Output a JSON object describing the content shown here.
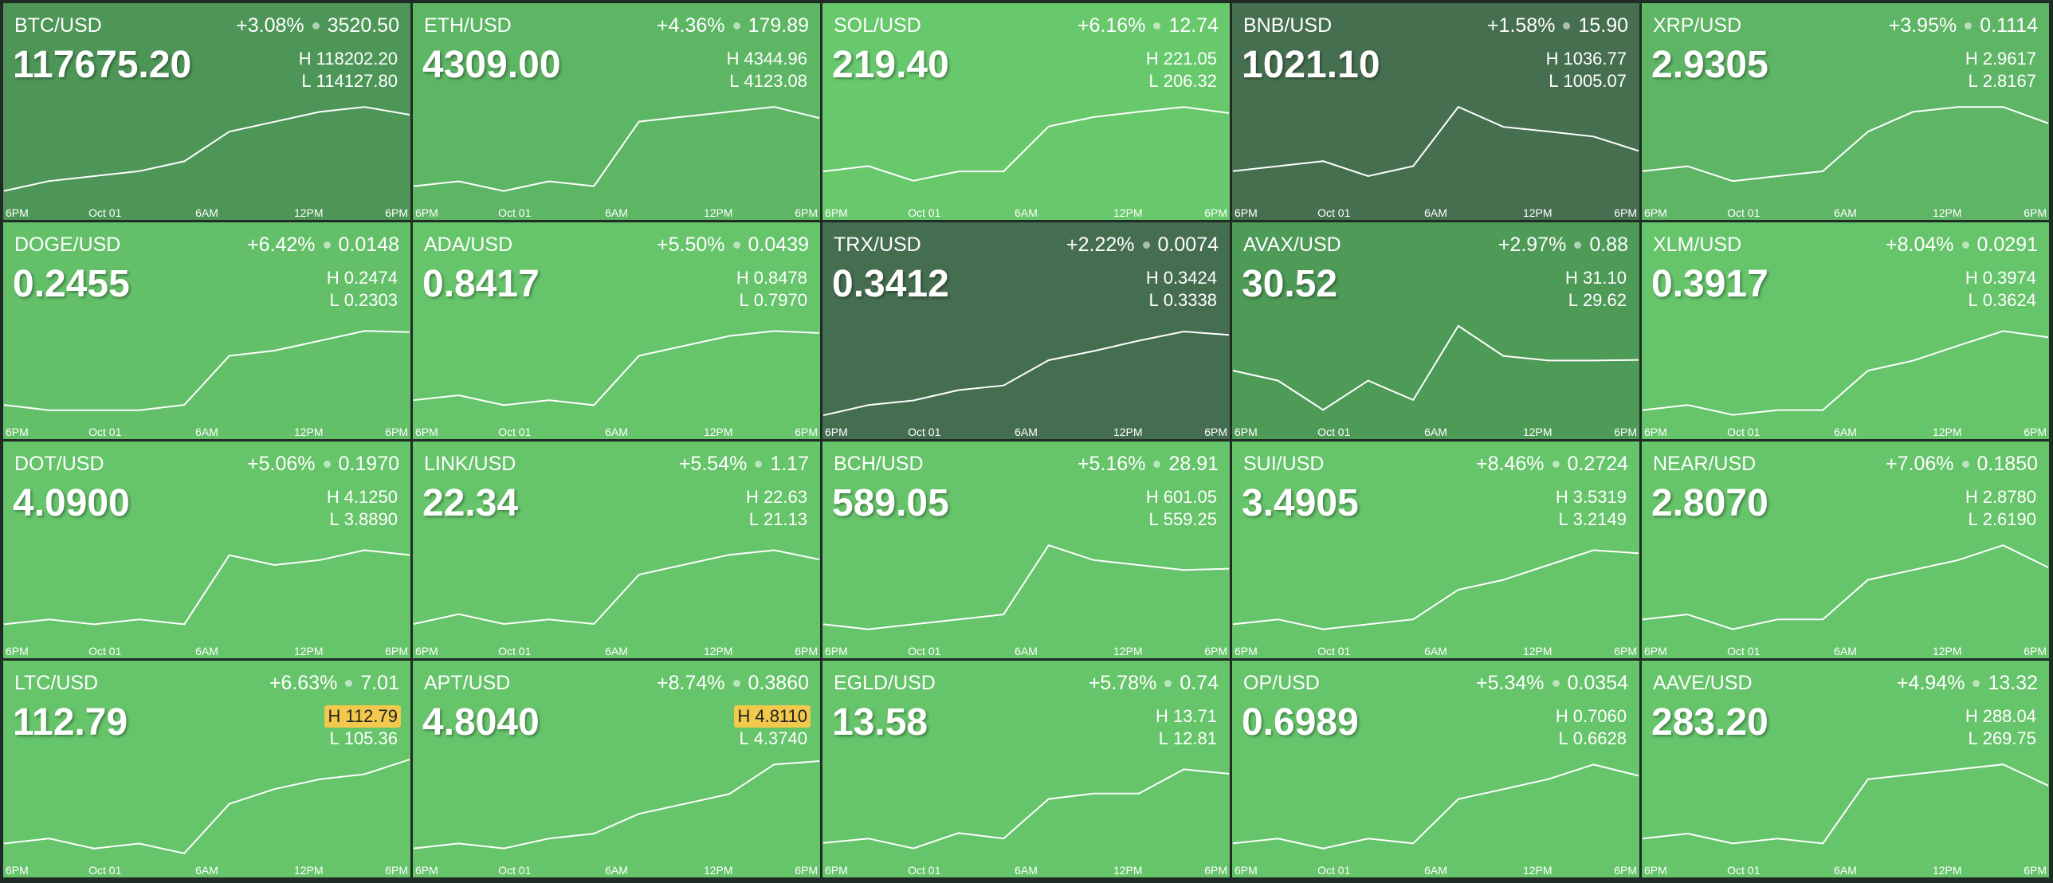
{
  "high_prefix": "H",
  "low_prefix": "L",
  "x_labels": [
    "6PM",
    "Oct 01",
    "6AM",
    "12PM",
    "6PM"
  ],
  "tiles": [
    {
      "pair": "BTC/USD",
      "change_pct": "+3.08%",
      "change": "3520.50",
      "price": "117675.20",
      "high": "118202.20",
      "low": "114127.80",
      "color": "#4d9657",
      "spark": [
        114535,
        114943,
        115146,
        115350,
        115758,
        116980,
        117387,
        117795,
        118000,
        117675
      ]
    },
    {
      "pair": "ETH/USD",
      "change_pct": "+4.36%",
      "change": "179.89",
      "price": "4309.00",
      "high": "4344.96",
      "low": "4123.08",
      "color": "#5db664",
      "spark": [
        4156,
        4167,
        4145,
        4167,
        4156,
        4301,
        4312,
        4323,
        4334,
        4309
      ]
    },
    {
      "pair": "SOL/USD",
      "change_pct": "+6.16%",
      "change": "12.74",
      "price": "219.40",
      "high": "221.05",
      "low": "206.32",
      "color": "#68c86c",
      "spark": [
        210.7,
        211.5,
        209.3,
        210.7,
        210.7,
        217.4,
        218.8,
        219.6,
        220.3,
        219.4
      ]
    },
    {
      "pair": "BNB/USD",
      "change_pct": "+1.58%",
      "change": "15.90",
      "price": "1021.10",
      "high": "1036.77",
      "low": "1005.07",
      "color": "#466f50",
      "spark": [
        1014.6,
        1016.2,
        1017.8,
        1013.0,
        1016.2,
        1035.2,
        1028.8,
        1027.3,
        1025.7,
        1021.1
      ]
    },
    {
      "pair": "XRP/USD",
      "change_pct": "+3.95%",
      "change": "0.1114",
      "price": "2.9305",
      "high": "2.9617",
      "low": "2.8167",
      "color": "#5fb566",
      "spark": [
        2.8602,
        2.8675,
        2.8457,
        2.853,
        2.8602,
        2.9182,
        2.9472,
        2.9545,
        2.9545,
        2.9305
      ]
    },
    {
      "pair": "DOGE/USD",
      "change_pct": "+6.42%",
      "change": "0.0148",
      "price": "0.2455",
      "high": "0.2474",
      "low": "0.2303",
      "color": "#63c068",
      "spark": [
        0.2329,
        0.232,
        0.232,
        0.232,
        0.2329,
        0.2414,
        0.2423,
        0.244,
        0.2457,
        0.2455
      ]
    },
    {
      "pair": "ADA/USD",
      "change_pct": "+5.50%",
      "change": "0.0439",
      "price": "0.8417",
      "high": "0.8478",
      "low": "0.7970",
      "color": "#66c46a",
      "spark": [
        0.8072,
        0.8097,
        0.8046,
        0.8072,
        0.8046,
        0.83,
        0.8351,
        0.8402,
        0.8427,
        0.8417
      ]
    },
    {
      "pair": "TRX/USD",
      "change_pct": "+2.22%",
      "change": "0.0074",
      "price": "0.3412",
      "high": "0.3424",
      "low": "0.3338",
      "color": "#456e50",
      "spark": [
        0.3342,
        0.3351,
        0.3355,
        0.3364,
        0.3368,
        0.339,
        0.3398,
        0.3407,
        0.3415,
        0.3412
      ]
    },
    {
      "pair": "AVAX/USD",
      "change_pct": "+2.97%",
      "change": "0.88",
      "price": "30.52",
      "high": "31.10",
      "low": "29.62",
      "color": "#4e9a57",
      "spark": [
        30.36,
        30.21,
        29.77,
        30.21,
        29.92,
        31.03,
        30.58,
        30.51,
        30.51,
        30.52
      ]
    },
    {
      "pair": "XLM/USD",
      "change_pct": "+8.04%",
      "change": "0.0291",
      "price": "0.3917",
      "high": "0.3974",
      "low": "0.3624",
      "color": "#66c46a",
      "spark": [
        0.3659,
        0.3677,
        0.3642,
        0.3659,
        0.3659,
        0.3799,
        0.3834,
        0.3887,
        0.3939,
        0.3917
      ]
    },
    {
      "pair": "DOT/USD",
      "change_pct": "+5.06%",
      "change": "0.1970",
      "price": "4.0900",
      "high": "4.1250",
      "low": "3.8890",
      "color": "#66c46a",
      "spark": [
        3.9244,
        3.9362,
        3.9244,
        3.9362,
        3.9244,
        4.0896,
        4.066,
        4.0778,
        4.1014,
        4.09
      ]
    },
    {
      "pair": "LINK/USD",
      "change_pct": "+5.54%",
      "change": "1.17",
      "price": "22.34",
      "high": "22.63",
      "low": "21.13",
      "color": "#66c46a",
      "spark": [
        21.36,
        21.51,
        21.36,
        21.43,
        21.36,
        22.11,
        22.26,
        22.41,
        22.48,
        22.34
      ]
    },
    {
      "pair": "BCH/USD",
      "change_pct": "+5.16%",
      "change": "28.91",
      "price": "589.05",
      "high": "601.05",
      "low": "559.25",
      "color": "#66c46a",
      "spark": [
        565.52,
        563.43,
        565.52,
        567.61,
        569.7,
        598.96,
        592.69,
        590.6,
        588.51,
        589.05
      ]
    },
    {
      "pair": "SUI/USD",
      "change_pct": "+8.46%",
      "change": "0.2724",
      "price": "3.4905",
      "high": "3.5319",
      "low": "3.2149",
      "color": "#66c46a",
      "spark": [
        3.2625,
        3.2783,
        3.2466,
        3.2625,
        3.2783,
        3.3734,
        3.4051,
        3.4527,
        3.5002,
        3.4905
      ]
    },
    {
      "pair": "NEAR/USD",
      "change_pct": "+7.06%",
      "change": "0.1850",
      "price": "2.8070",
      "high": "2.8780",
      "low": "2.6190",
      "color": "#66c46a",
      "spark": [
        2.6708,
        2.6838,
        2.6449,
        2.6708,
        2.6708,
        2.7744,
        2.8003,
        2.8262,
        2.8651,
        2.807
      ]
    },
    {
      "pair": "LTC/USD",
      "change_pct": "+6.63%",
      "change": "7.01",
      "price": "112.79",
      "high": "112.79",
      "low": "105.36",
      "color": "#66c46a",
      "high_highlight": true,
      "spark": [
        106.47,
        106.85,
        106.1,
        106.47,
        105.73,
        109.45,
        110.56,
        111.3,
        111.68,
        112.79
      ]
    },
    {
      "pair": "APT/USD",
      "change_pct": "+8.74%",
      "change": "0.3860",
      "price": "4.8040",
      "high": "4.8110",
      "low": "4.3740",
      "color": "#66c46a",
      "high_highlight": true,
      "spark": [
        4.4177,
        4.4396,
        4.4177,
        4.4614,
        4.4833,
        4.5707,
        4.6144,
        4.6581,
        4.7892,
        4.804
      ]
    },
    {
      "pair": "EGLD/USD",
      "change_pct": "+5.78%",
      "change": "0.74",
      "price": "13.58",
      "high": "13.71",
      "low": "12.81",
      "color": "#66c46a",
      "spark": [
        12.95,
        12.99,
        12.9,
        13.04,
        12.99,
        13.35,
        13.4,
        13.4,
        13.62,
        13.58
      ]
    },
    {
      "pair": "OP/USD",
      "change_pct": "+5.34%",
      "change": "0.0354",
      "price": "0.6989",
      "high": "0.7060",
      "low": "0.6628",
      "color": "#66c46a",
      "spark": [
        0.6693,
        0.6714,
        0.6671,
        0.6714,
        0.6693,
        0.6887,
        0.693,
        0.6974,
        0.7038,
        0.6989
      ]
    },
    {
      "pair": "AAVE/USD",
      "change_pct": "+4.94%",
      "change": "13.32",
      "price": "283.20",
      "high": "288.04",
      "low": "269.75",
      "color": "#66c46a",
      "spark": [
        273.41,
        274.32,
        272.49,
        273.41,
        272.49,
        284.38,
        285.3,
        286.21,
        287.13,
        283.2
      ]
    }
  ]
}
